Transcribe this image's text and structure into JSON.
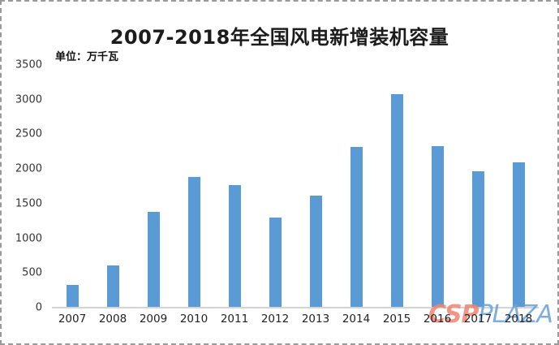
{
  "header": {
    "title": "2007-2018年全国风电新增装机容量",
    "unit_label": "单位：万千瓦"
  },
  "chart_data": {
    "type": "bar",
    "title": "2007-2018年全国风电新增装机容量",
    "unit": "万千瓦",
    "categories": [
      "2007",
      "2008",
      "2009",
      "2010",
      "2011",
      "2012",
      "2013",
      "2014",
      "2015",
      "2016",
      "2017",
      "2018"
    ],
    "values": [
      330,
      610,
      1380,
      1890,
      1765,
      1295,
      1610,
      2320,
      3075,
      2335,
      1965,
      2100
    ],
    "xlabel": "",
    "ylabel": "",
    "ylim": [
      0,
      3500
    ],
    "y_ticks": [
      0,
      500,
      1000,
      1500,
      2000,
      2500,
      3000,
      3500
    ],
    "grid": false,
    "legend": false,
    "bar_color": "#5b9bd5",
    "axis_line_color": "#d4d4d4"
  },
  "watermark": {
    "part1": "CSP",
    "part2": "PLAZA",
    "color1": "#f2836f",
    "color2": "#66a1dd"
  },
  "frame": {
    "border_color": "#9a9a9a",
    "background": "#ffffff"
  }
}
